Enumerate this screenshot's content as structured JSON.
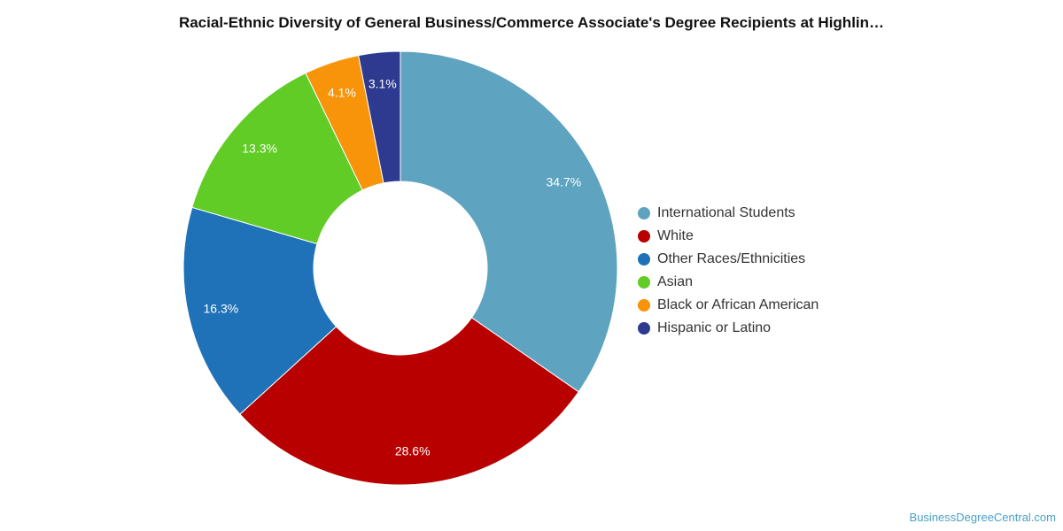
{
  "chart_data": {
    "type": "pie",
    "title": "Racial-Ethnic Diversity of General Business/Commerce Associate's Degree Recipients at Highlin…",
    "slices": [
      {
        "label": "International Students",
        "value": 34.7,
        "display": "34.7%",
        "color": "#5ea3c0"
      },
      {
        "label": "White",
        "value": 28.6,
        "display": "28.6%",
        "color": "#b80000"
      },
      {
        "label": "Other Races/Ethnicities",
        "value": 16.3,
        "display": "16.3%",
        "color": "#1f72b8"
      },
      {
        "label": "Asian",
        "value": 13.3,
        "display": "13.3%",
        "color": "#60cc25"
      },
      {
        "label": "Black or African American",
        "value": 4.1,
        "display": "4.1%",
        "color": "#f7940a"
      },
      {
        "label": "Hispanic or Latino",
        "value": 3.1,
        "display": "3.1%",
        "color": "#2d3a90"
      }
    ],
    "legend_position": "right",
    "donut": true
  },
  "footer": {
    "watermark": "BusinessDegreeCentral.com"
  }
}
